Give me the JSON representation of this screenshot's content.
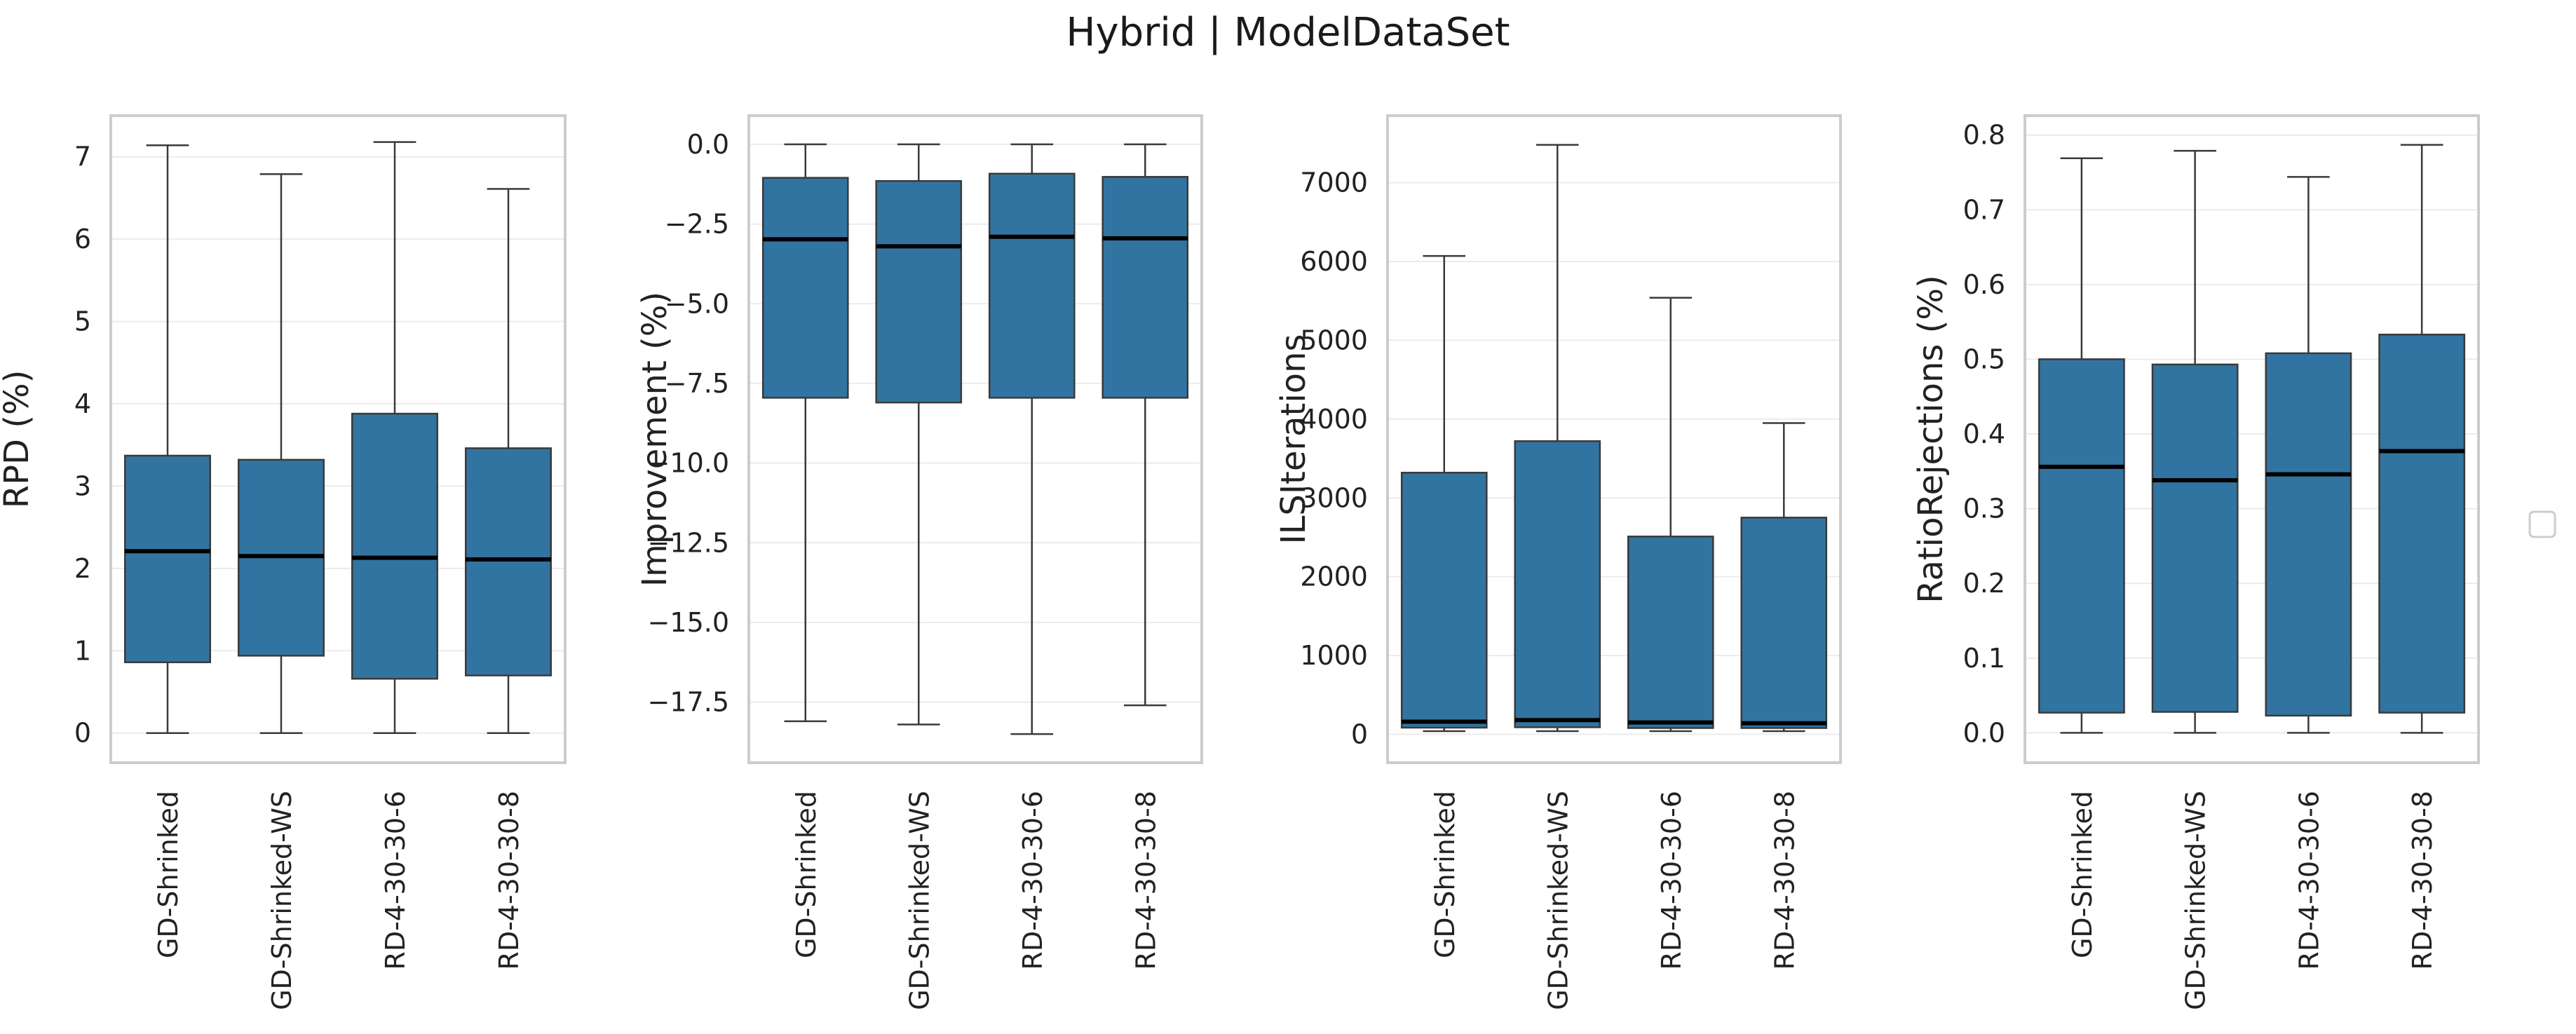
{
  "figure": {
    "title": "Hybrid | ModelDataSet"
  },
  "colors": {
    "box_fill": "#3274a1",
    "box_edge": "#3a3a3a",
    "median": "#000000",
    "whisker": "#3a3a3a",
    "frame": "#cccccc",
    "grid": "#ebebeb",
    "legend_frame": "#cccccc"
  },
  "legend": {
    "placement": "right",
    "entries": []
  },
  "chart_data": [
    {
      "type": "box",
      "title": "",
      "xlabel": "",
      "ylabel": "RPD (%)",
      "categories": [
        "GD-Shrinked",
        "GD-Shrinked-WS",
        "RD-4-30-30-6",
        "RD-4-30-30-8"
      ],
      "ylim": [
        -0.36,
        7.5
      ],
      "yticks": [
        0,
        1,
        2,
        3,
        4,
        5,
        6,
        7
      ],
      "ytick_labels": [
        "0",
        "1",
        "2",
        "3",
        "4",
        "5",
        "6",
        "7"
      ],
      "grid": true,
      "boxes": [
        {
          "whislo": 0.0,
          "q1": 0.86,
          "med": 2.21,
          "q3": 3.37,
          "whishi": 7.14
        },
        {
          "whislo": 0.0,
          "q1": 0.94,
          "med": 2.15,
          "q3": 3.32,
          "whishi": 6.79
        },
        {
          "whislo": 0.0,
          "q1": 0.66,
          "med": 2.13,
          "q3": 3.88,
          "whishi": 7.18
        },
        {
          "whislo": 0.0,
          "q1": 0.7,
          "med": 2.11,
          "q3": 3.46,
          "whishi": 6.61
        }
      ]
    },
    {
      "type": "box",
      "title": "",
      "xlabel": "",
      "ylabel": "Improvement (%)",
      "categories": [
        "GD-Shrinked",
        "GD-Shrinked-WS",
        "RD-4-30-30-6",
        "RD-4-30-30-8"
      ],
      "ylim": [
        -19.4,
        0.9
      ],
      "yticks": [
        0,
        -2.5,
        -5,
        -7.5,
        -10,
        -12.5,
        -15,
        -17.5
      ],
      "ytick_labels": [
        "0.0",
        "−2.5",
        "−5.0",
        "−7.5",
        "−10.0",
        "−12.5",
        "−15.0",
        "−17.5"
      ],
      "grid": true,
      "boxes": [
        {
          "whislo": -18.1,
          "q1": -7.95,
          "med": -2.98,
          "q3": -1.05,
          "whishi": 0.0
        },
        {
          "whislo": -18.2,
          "q1": -8.1,
          "med": -3.2,
          "q3": -1.15,
          "whishi": 0.0
        },
        {
          "whislo": -18.5,
          "q1": -7.95,
          "med": -2.9,
          "q3": -0.92,
          "whishi": 0.0
        },
        {
          "whislo": -17.6,
          "q1": -7.95,
          "med": -2.95,
          "q3": -1.02,
          "whishi": 0.0
        }
      ]
    },
    {
      "type": "box",
      "title": "",
      "xlabel": "",
      "ylabel": "ILSIterations",
      "categories": [
        "GD-Shrinked",
        "GD-Shrinked-WS",
        "RD-4-30-30-6",
        "RD-4-30-30-8"
      ],
      "ylim": [
        -360,
        7850
      ],
      "yticks": [
        0,
        1000,
        2000,
        3000,
        4000,
        5000,
        6000,
        7000
      ],
      "ytick_labels": [
        "0",
        "1000",
        "2000",
        "3000",
        "4000",
        "5000",
        "6000",
        "7000"
      ],
      "grid": true,
      "boxes": [
        {
          "whislo": 40,
          "q1": 85,
          "med": 160,
          "q3": 3320,
          "whishi": 6070
        },
        {
          "whislo": 40,
          "q1": 90,
          "med": 180,
          "q3": 3720,
          "whishi": 7480
        },
        {
          "whislo": 40,
          "q1": 80,
          "med": 150,
          "q3": 2510,
          "whishi": 5540
        },
        {
          "whislo": 40,
          "q1": 80,
          "med": 140,
          "q3": 2750,
          "whishi": 3950
        }
      ]
    },
    {
      "type": "box",
      "title": "",
      "xlabel": "",
      "ylabel": "RatioRejections (%)",
      "categories": [
        "GD-Shrinked",
        "GD-Shrinked-WS",
        "RD-4-30-30-6",
        "RD-4-30-30-8"
      ],
      "ylim": [
        -0.04,
        0.826
      ],
      "yticks": [
        0,
        0.1,
        0.2,
        0.3,
        0.4,
        0.5,
        0.6,
        0.7,
        0.8
      ],
      "ytick_labels": [
        "0.0",
        "0.1",
        "0.2",
        "0.3",
        "0.4",
        "0.5",
        "0.6",
        "0.7",
        "0.8"
      ],
      "grid": true,
      "boxes": [
        {
          "whislo": 0.0,
          "q1": 0.027,
          "med": 0.356,
          "q3": 0.5,
          "whishi": 0.769
        },
        {
          "whislo": 0.0,
          "q1": 0.028,
          "med": 0.338,
          "q3": 0.493,
          "whishi": 0.779
        },
        {
          "whislo": 0.0,
          "q1": 0.023,
          "med": 0.346,
          "q3": 0.508,
          "whishi": 0.744
        },
        {
          "whislo": 0.0,
          "q1": 0.027,
          "med": 0.377,
          "q3": 0.533,
          "whishi": 0.787
        }
      ]
    }
  ]
}
